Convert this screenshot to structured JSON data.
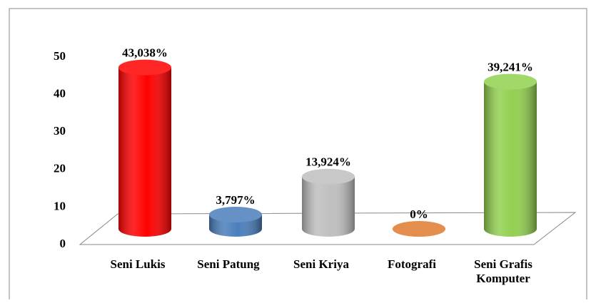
{
  "chart_data": {
    "type": "bar",
    "categories": [
      "Seni Lukis",
      "Seni Patung",
      "Seni Kriya",
      "Fotografi",
      "Seni Grafis Komputer"
    ],
    "values": [
      43.038,
      3.797,
      13.924,
      0,
      39.241
    ],
    "value_labels": [
      "43,038%",
      "3,797%",
      "13,924%",
      "0%",
      "39,241%"
    ],
    "colors": [
      "#ff0000",
      "#4a7ebb",
      "#bfbfbf",
      "#e07b30",
      "#92d050"
    ],
    "ylim": [
      0,
      50
    ],
    "yticks": [
      0,
      10,
      20,
      30,
      40,
      50
    ]
  }
}
